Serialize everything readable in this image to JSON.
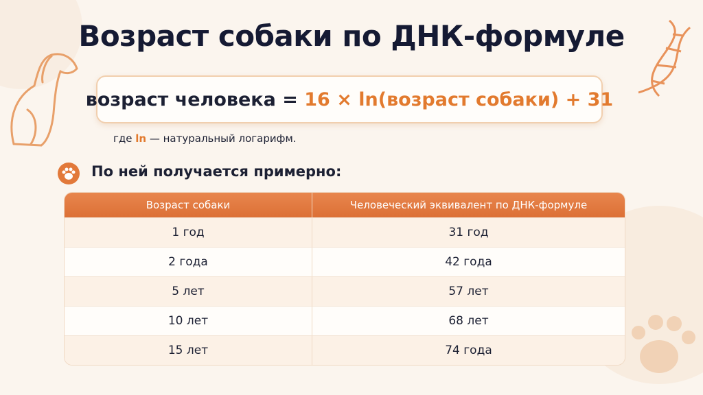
{
  "header": {
    "title": "Возраст собаки по ДНК-формуле"
  },
  "formula": {
    "left": "возраст человека = ",
    "right": "16 × ln(возраст собаки) + 31"
  },
  "note": {
    "prefix": "где ",
    "term": "ln",
    "rest": " — натуральный логарифм."
  },
  "section": {
    "heading": "По ней получается примерно:"
  },
  "table": {
    "columns": [
      "Возраст собаки",
      "Человеческий эквивалент по ДНК-формуле"
    ],
    "rows": [
      [
        "1 год",
        "31 год"
      ],
      [
        "2 года",
        "42 года"
      ],
      [
        "5 лет",
        "57 лет"
      ],
      [
        "10 лет",
        "68 лет"
      ],
      [
        "15 лет",
        "74 года"
      ]
    ]
  }
}
